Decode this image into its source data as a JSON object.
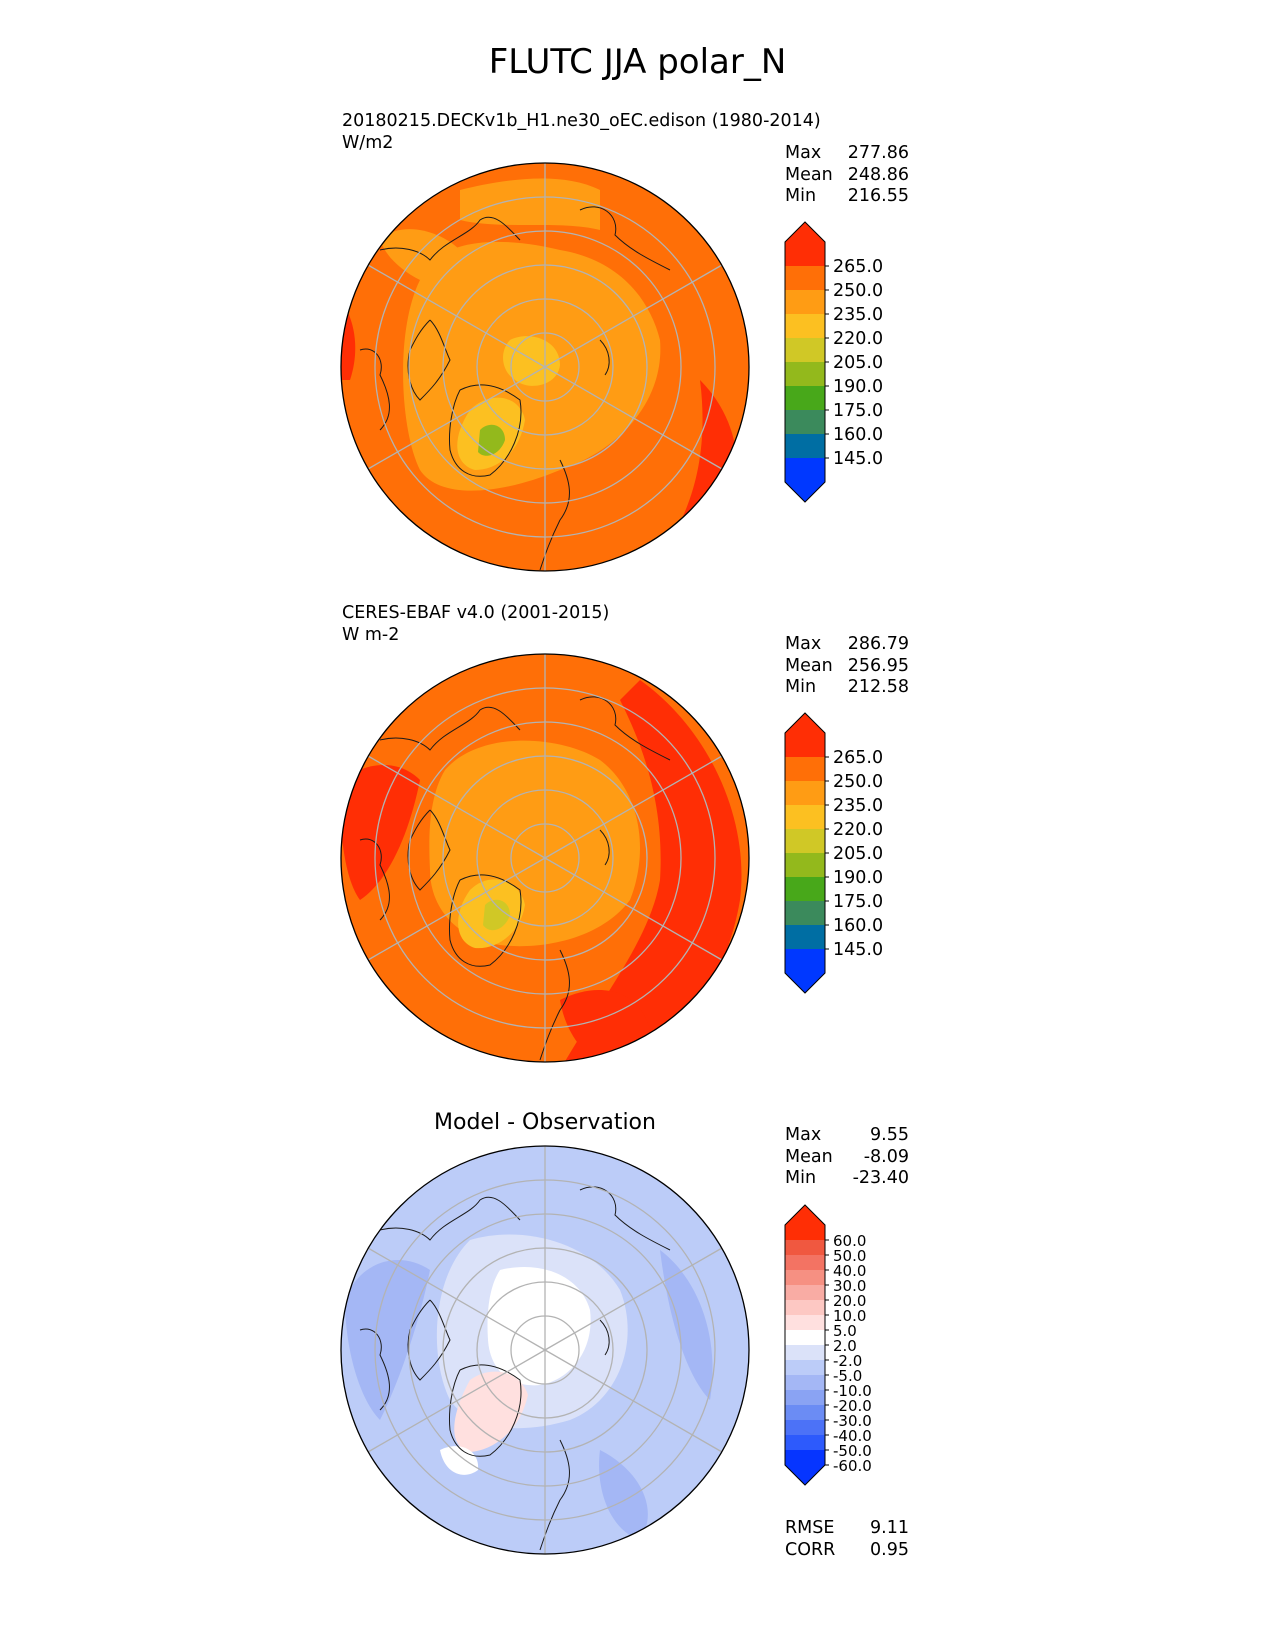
{
  "figure_title": "FLUTC JJA polar_N",
  "colors": {
    "abs_levels": [
      "#0038ff",
      "#006ea3",
      "#3b8a5c",
      "#48a81a",
      "#93b91c",
      "#d0c826",
      "#fcc021",
      "#ff9c14",
      "#ff6f07",
      "#ff2e05"
    ],
    "diff_levels": [
      "#0635ff",
      "#2d5afc",
      "#4c72f7",
      "#6b8cf4",
      "#8aa3f3",
      "#a4b7f5",
      "#bcccf8",
      "#dbe2f9",
      "#ffffff",
      "#ffe0df",
      "#fdc8c3",
      "#f9aca4",
      "#f69082",
      "#f37363",
      "#f05840",
      "#ff2e05"
    ],
    "grid": "#b3b3b3",
    "coast": "#1a1a1a"
  },
  "panels": [
    {
      "id": "test",
      "title_line1": "20180215.DECKv1b_H1.ne30_oEC.edison (1980-2014)",
      "title_line2": "W/m2",
      "stats": [
        {
          "label": "Max",
          "value": "277.86"
        },
        {
          "label": "Mean",
          "value": "248.86"
        },
        {
          "label": "Min",
          "value": "216.55"
        }
      ],
      "colorbar_ticks": [
        "265.0",
        "250.0",
        "235.0",
        "220.0",
        "205.0",
        "190.0",
        "175.0",
        "160.0",
        "145.0"
      ]
    },
    {
      "id": "reference",
      "title_line1": "CERES-EBAF v4.0 (2001-2015)",
      "title_line2": "W m-2",
      "stats": [
        {
          "label": "Max",
          "value": "286.79"
        },
        {
          "label": "Mean",
          "value": "256.95"
        },
        {
          "label": "Min",
          "value": "212.58"
        }
      ],
      "colorbar_ticks": [
        "265.0",
        "250.0",
        "235.0",
        "220.0",
        "205.0",
        "190.0",
        "175.0",
        "160.0",
        "145.0"
      ]
    },
    {
      "id": "difference",
      "title_center": "Model - Observation",
      "stats": [
        {
          "label": "Max",
          "value": "9.55"
        },
        {
          "label": "Mean",
          "value": "-8.09"
        },
        {
          "label": "Min",
          "value": "-23.40"
        }
      ],
      "colorbar_ticks": [
        "60.0",
        "50.0",
        "40.0",
        "30.0",
        "20.0",
        "10.0",
        "5.0",
        "2.0",
        "-2.0",
        "-5.0",
        "-10.0",
        "-20.0",
        "-30.0",
        "-40.0",
        "-50.0",
        "-60.0"
      ],
      "metrics": [
        {
          "label": "RMSE",
          "value": "9.11"
        },
        {
          "label": "CORR",
          "value": "0.95"
        }
      ]
    }
  ]
}
